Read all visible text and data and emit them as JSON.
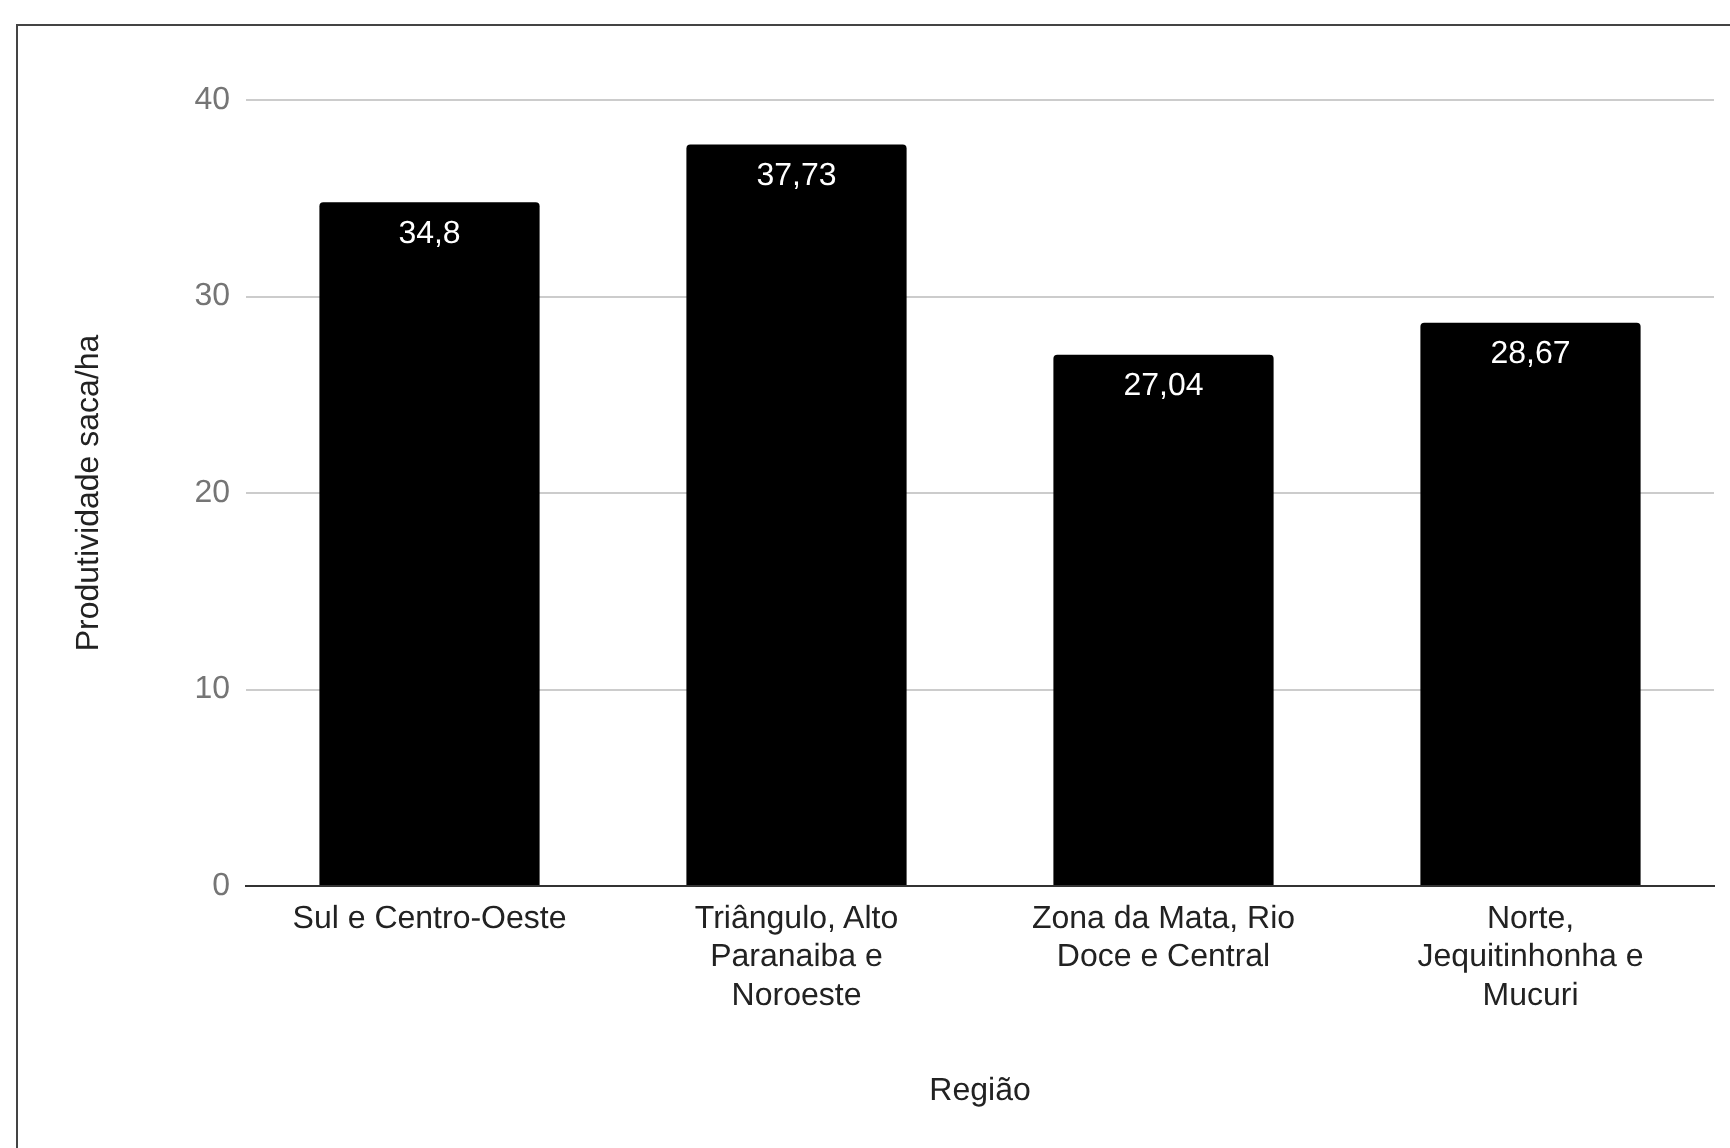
{
  "chart_data": {
    "type": "bar",
    "xlabel": "Região",
    "ylabel": "Produtividade saca/ha",
    "categories": [
      "Sul e Centro-Oeste",
      "Triângulo, Alto Paranaiba e Noroeste",
      "Zona da Mata, Rio Doce e Central",
      "Norte, Jequitinhonha e Mucuri"
    ],
    "values": [
      34.8,
      37.73,
      27.04,
      28.67
    ],
    "value_labels": [
      "34,8",
      "37,73",
      "27,04",
      "28,67"
    ],
    "color": "#000000",
    "ylim": [
      0,
      40
    ],
    "yticks": [
      0,
      10,
      20,
      30,
      40
    ],
    "grid": "y"
  }
}
